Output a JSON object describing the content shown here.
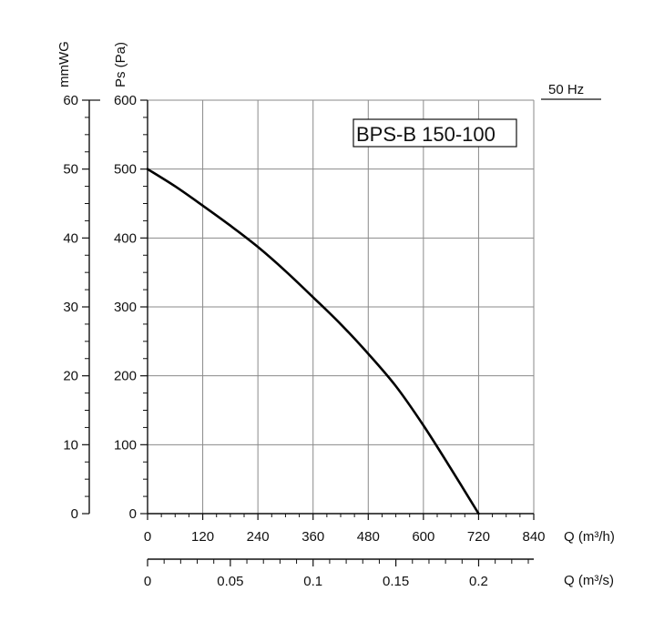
{
  "chart_data": {
    "type": "line",
    "title": "BPS-B 150-100",
    "frequency_label": "50 Hz",
    "xlabel": "Q (m³/h)",
    "ylabel": "Ps (Pa)",
    "x": [
      0,
      60,
      120,
      180,
      240,
      300,
      360,
      420,
      480,
      540,
      600,
      660,
      720
    ],
    "series": [
      {
        "name": "BPS-B 150-100",
        "values": [
          500,
          475,
          447,
          418,
          387,
          352,
          314,
          275,
          232,
          185,
          128,
          65,
          0
        ]
      }
    ],
    "xlim": [
      0,
      840
    ],
    "ylim": [
      0,
      600
    ],
    "x_ticks": [
      "0",
      "120",
      "240",
      "360",
      "480",
      "600",
      "720",
      "840"
    ],
    "y_ticks": [
      "0",
      "100",
      "200",
      "300",
      "400",
      "500",
      "600"
    ],
    "grid": true,
    "secondary_y": {
      "label": "mmWG",
      "ticks": [
        "0",
        "10",
        "20",
        "30",
        "40",
        "50",
        "60"
      ],
      "range": [
        0,
        60
      ]
    },
    "secondary_x": {
      "label": "Q (m³/s)",
      "ticks": [
        "0",
        "0.05",
        "0.1",
        "0.15",
        "0.2"
      ],
      "tick_values": [
        0,
        0.05,
        0.1,
        0.15,
        0.2
      ],
      "range": [
        0,
        0.2333
      ]
    }
  }
}
